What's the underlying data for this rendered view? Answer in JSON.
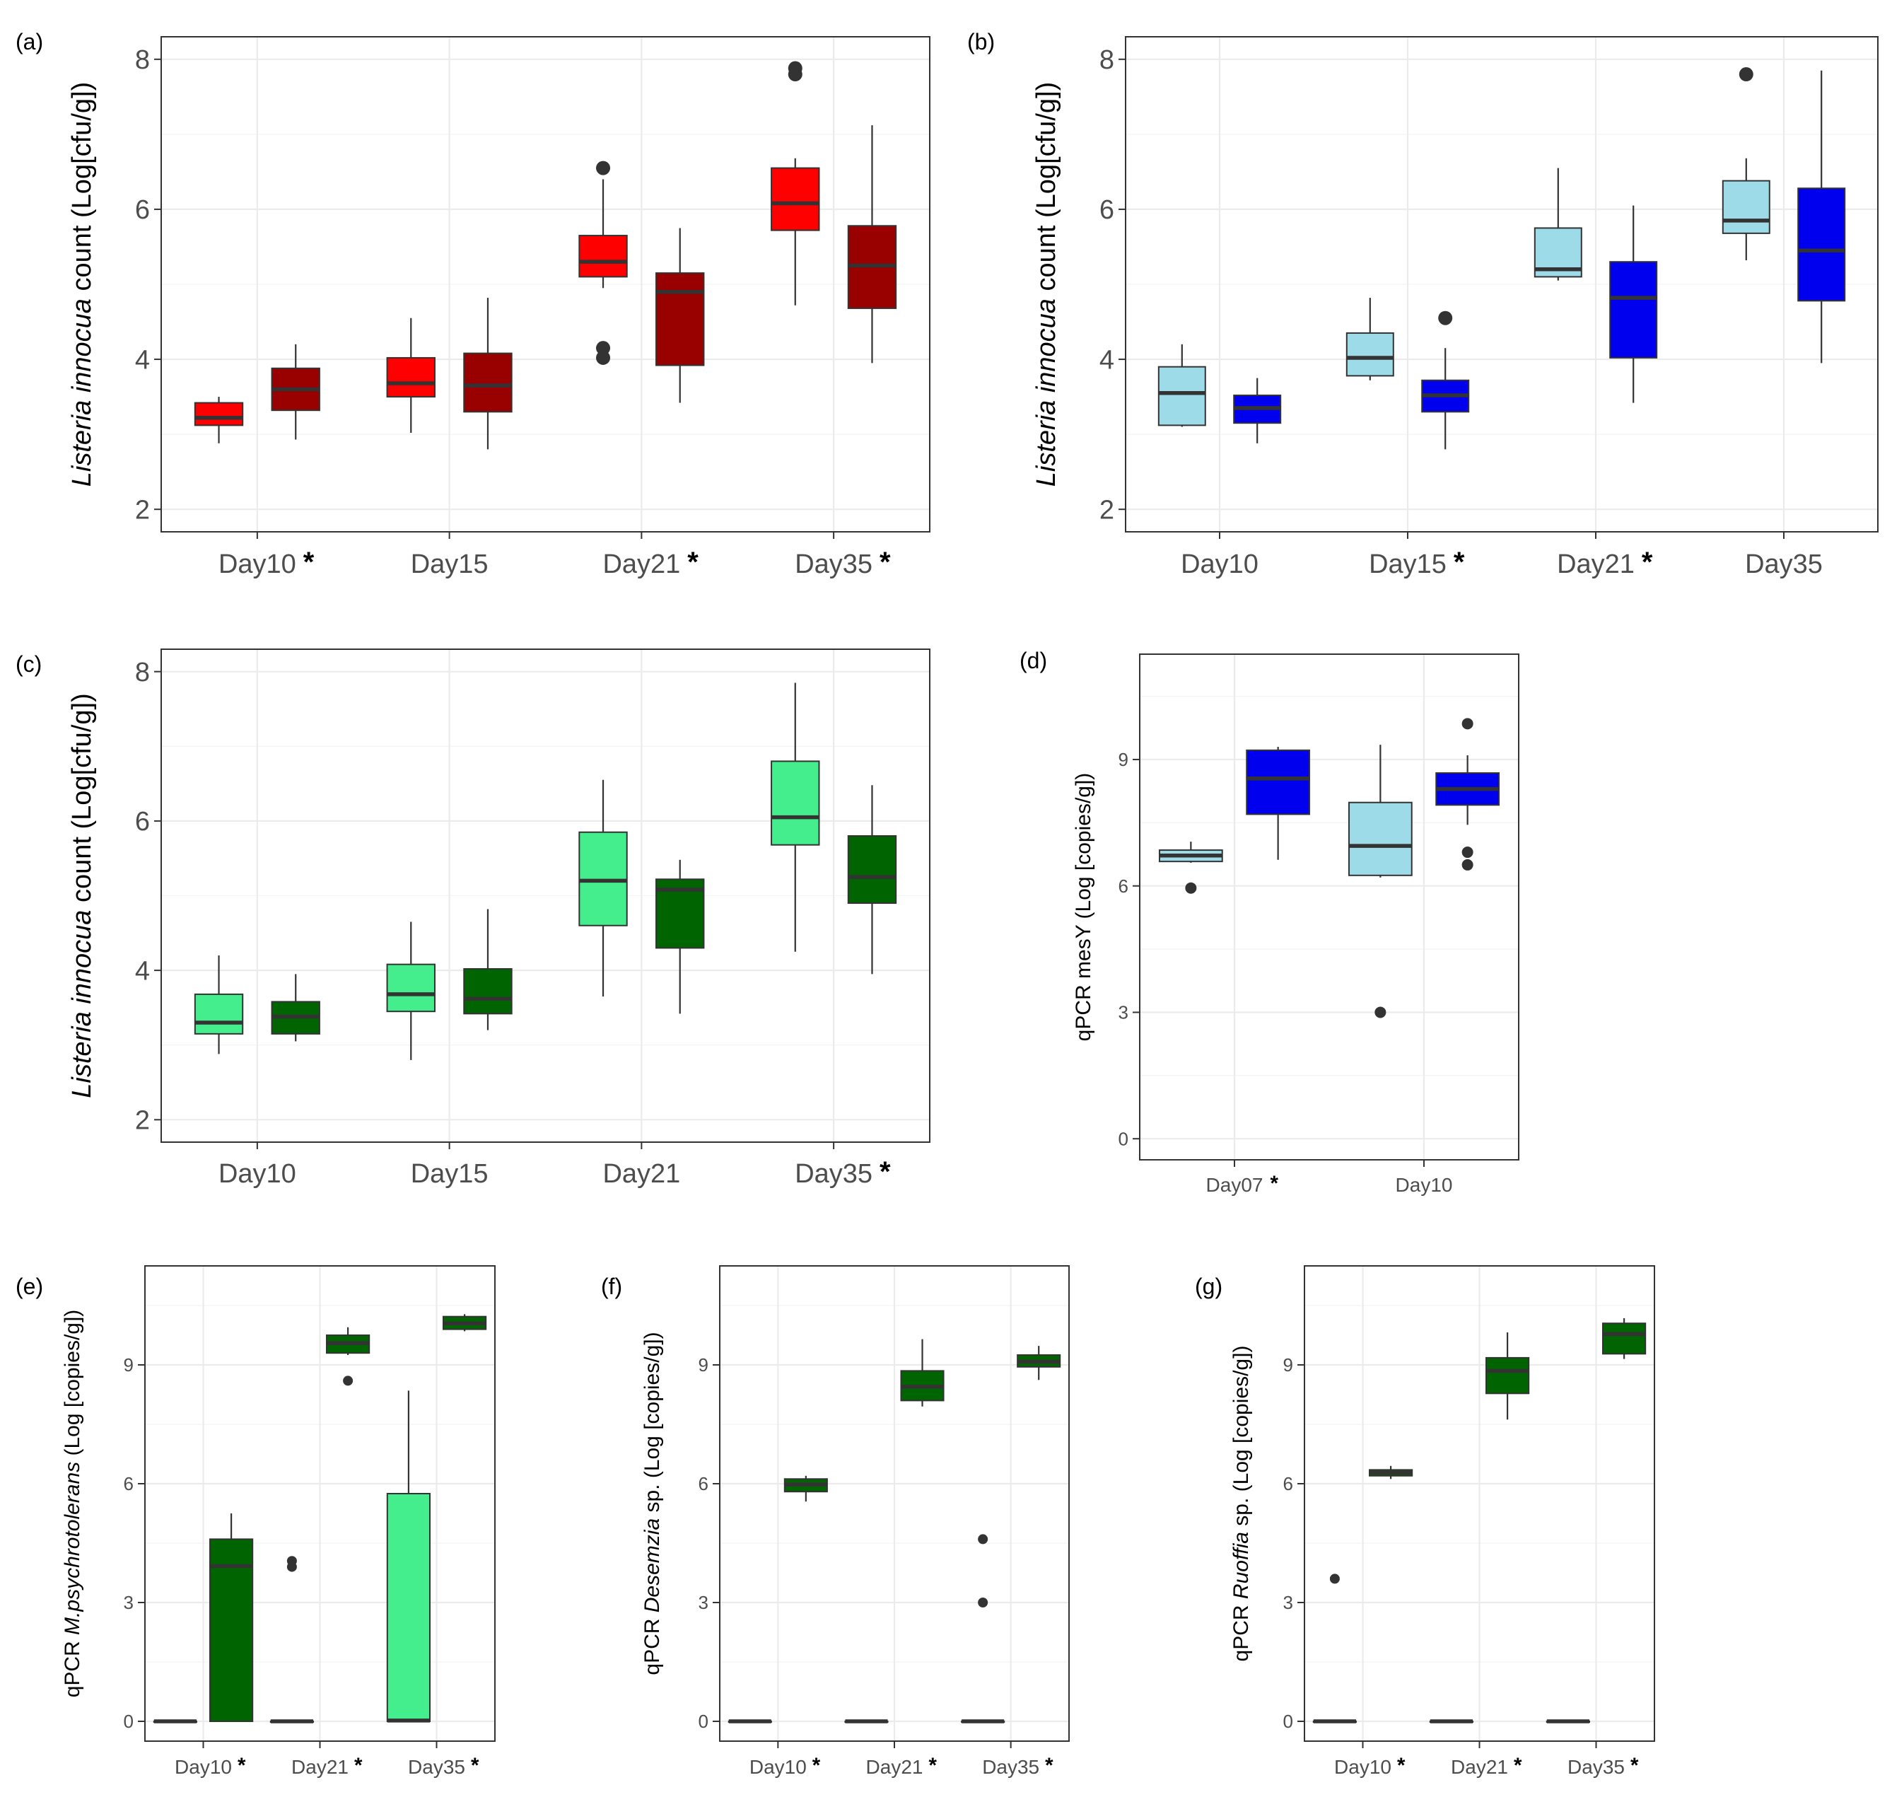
{
  "figure": {
    "panels": [
      {
        "tag": "(a)",
        "ylabel_parts": [
          {
            "text": "Listeria  innocua",
            "italic": true
          },
          {
            "text": " count (Log[cfu/g])",
            "italic": false
          }
        ],
        "asterisk": "*",
        "series_colors": [
          "#ff0000",
          "#990000"
        ]
      },
      {
        "tag": "(b)",
        "ylabel_parts": [
          {
            "text": "Listeria  innocua",
            "italic": true
          },
          {
            "text": " count (Log[cfu/g])",
            "italic": false
          }
        ],
        "asterisk": "*",
        "series_colors": [
          "#9ddbe8",
          "#0000ee"
        ]
      },
      {
        "tag": "(c)",
        "ylabel_parts": [
          {
            "text": "Listeria  innocua",
            "italic": true
          },
          {
            "text": " count (Log[cfu/g])",
            "italic": false
          }
        ],
        "asterisk": "*",
        "series_colors": [
          "#44ee8d",
          "#006400"
        ]
      },
      {
        "tag": "(d)",
        "ylabel_parts": [
          {
            "text": "qPCR mesY (Log [copies/g])",
            "italic": false
          }
        ],
        "asterisk": "*",
        "series_colors": [
          "#9ddbe8",
          "#0000ee"
        ]
      },
      {
        "tag": "(e)",
        "ylabel_parts": [
          {
            "text": "qPCR ",
            "italic": false
          },
          {
            "text": "M.psychrotolerans",
            "italic": true
          },
          {
            "text": " (Log [copies/g])",
            "italic": false
          }
        ],
        "asterisk": "*",
        "series_colors": [
          "#44ee8d",
          "#006400"
        ]
      },
      {
        "tag": "(f)",
        "ylabel_parts": [
          {
            "text": "qPCR ",
            "italic": false
          },
          {
            "text": "Desemzia",
            "italic": true
          },
          {
            "text": " sp. (Log [copies/g])",
            "italic": false
          }
        ],
        "asterisk": "*",
        "series_colors": [
          "#44ee8d",
          "#006400"
        ]
      },
      {
        "tag": "(g)",
        "ylabel_parts": [
          {
            "text": "qPCR ",
            "italic": false
          },
          {
            "text": "Ruoffia",
            "italic": true
          },
          {
            "text": " sp. (Log [copies/g])",
            "italic": false
          }
        ],
        "asterisk": "*",
        "series_colors": [
          "#44ee8d",
          "#006400"
        ]
      }
    ]
  },
  "chart_data": [
    {
      "type": "box",
      "panel": "(a)",
      "categories": [
        "Day10",
        "Day15",
        "Day21",
        "Day35"
      ],
      "significant": [
        true,
        false,
        true,
        true
      ],
      "ylim": [
        1.7,
        8.3
      ],
      "yticks": [
        2,
        4,
        6,
        8
      ],
      "grid": true,
      "boxes": [
        [
          {
            "min": 2.88,
            "q1": 3.12,
            "median": 3.22,
            "q3": 3.42,
            "max": 3.5,
            "outliers": []
          },
          {
            "min": 2.93,
            "q1": 3.32,
            "median": 3.6,
            "q3": 3.88,
            "max": 4.2,
            "outliers": []
          }
        ],
        [
          {
            "min": 3.02,
            "q1": 3.5,
            "median": 3.68,
            "q3": 4.02,
            "max": 4.55,
            "outliers": []
          },
          {
            "min": 2.8,
            "q1": 3.3,
            "median": 3.65,
            "q3": 4.08,
            "max": 4.82,
            "outliers": []
          }
        ],
        [
          {
            "min": 4.95,
            "q1": 5.1,
            "median": 5.3,
            "q3": 5.65,
            "max": 6.4,
            "outliers": [
              6.55,
              4.15,
              4.02
            ]
          },
          {
            "min": 3.42,
            "q1": 3.92,
            "median": 4.9,
            "q3": 5.15,
            "max": 5.75,
            "outliers": []
          }
        ],
        [
          {
            "min": 4.72,
            "q1": 5.72,
            "median": 6.08,
            "q3": 6.55,
            "max": 6.68,
            "outliers": [
              7.88,
              7.8
            ]
          },
          {
            "min": 3.95,
            "q1": 4.68,
            "median": 5.25,
            "q3": 5.78,
            "max": 7.12,
            "outliers": []
          }
        ]
      ]
    },
    {
      "type": "box",
      "panel": "(b)",
      "categories": [
        "Day10",
        "Day15",
        "Day21",
        "Day35"
      ],
      "significant": [
        false,
        true,
        true,
        false
      ],
      "ylim": [
        1.7,
        8.3
      ],
      "yticks": [
        2,
        4,
        6,
        8
      ],
      "grid": true,
      "boxes": [
        [
          {
            "min": 3.1,
            "q1": 3.12,
            "median": 3.55,
            "q3": 3.9,
            "max": 4.2,
            "outliers": []
          },
          {
            "min": 2.88,
            "q1": 3.15,
            "median": 3.35,
            "q3": 3.52,
            "max": 3.75,
            "outliers": []
          }
        ],
        [
          {
            "min": 3.72,
            "q1": 3.78,
            "median": 4.02,
            "q3": 4.35,
            "max": 4.82,
            "outliers": []
          },
          {
            "min": 2.8,
            "q1": 3.3,
            "median": 3.52,
            "q3": 3.72,
            "max": 4.15,
            "outliers": [
              4.55
            ]
          }
        ],
        [
          {
            "min": 5.05,
            "q1": 5.1,
            "median": 5.2,
            "q3": 5.75,
            "max": 6.55,
            "outliers": []
          },
          {
            "min": 3.42,
            "q1": 4.02,
            "median": 4.82,
            "q3": 5.3,
            "max": 6.05,
            "outliers": []
          }
        ],
        [
          {
            "min": 5.32,
            "q1": 5.68,
            "median": 5.85,
            "q3": 6.38,
            "max": 6.68,
            "outliers": [
              7.8
            ]
          },
          {
            "min": 3.95,
            "q1": 4.78,
            "median": 5.45,
            "q3": 6.28,
            "max": 7.85,
            "outliers": []
          }
        ]
      ]
    },
    {
      "type": "box",
      "panel": "(c)",
      "categories": [
        "Day10",
        "Day15",
        "Day21",
        "Day35"
      ],
      "significant": [
        false,
        false,
        false,
        true
      ],
      "ylim": [
        1.7,
        8.3
      ],
      "yticks": [
        2,
        4,
        6,
        8
      ],
      "grid": true,
      "boxes": [
        [
          {
            "min": 2.88,
            "q1": 3.15,
            "median": 3.3,
            "q3": 3.68,
            "max": 4.2,
            "outliers": []
          },
          {
            "min": 3.05,
            "q1": 3.15,
            "median": 3.38,
            "q3": 3.58,
            "max": 3.95,
            "outliers": []
          }
        ],
        [
          {
            "min": 2.8,
            "q1": 3.45,
            "median": 3.68,
            "q3": 4.08,
            "max": 4.65,
            "outliers": []
          },
          {
            "min": 3.2,
            "q1": 3.42,
            "median": 3.62,
            "q3": 4.02,
            "max": 4.82,
            "outliers": []
          }
        ],
        [
          {
            "min": 3.65,
            "q1": 4.6,
            "median": 5.2,
            "q3": 5.85,
            "max": 6.55,
            "outliers": []
          },
          {
            "min": 3.42,
            "q1": 4.3,
            "median": 5.08,
            "q3": 5.22,
            "max": 5.48,
            "outliers": []
          }
        ],
        [
          {
            "min": 4.25,
            "q1": 5.68,
            "median": 6.05,
            "q3": 6.8,
            "max": 7.85,
            "outliers": []
          },
          {
            "min": 3.95,
            "q1": 4.9,
            "median": 5.25,
            "q3": 5.8,
            "max": 6.48,
            "outliers": []
          }
        ]
      ]
    },
    {
      "type": "box",
      "panel": "(d)",
      "categories": [
        "Day07",
        "Day10"
      ],
      "significant": [
        true,
        false
      ],
      "ylim": [
        -0.5,
        11.5
      ],
      "yticks": [
        0,
        3,
        6,
        9
      ],
      "grid": true,
      "boxes": [
        [
          {
            "min": 6.55,
            "q1": 6.58,
            "median": 6.72,
            "q3": 6.85,
            "max": 7.05,
            "outliers": [
              5.95
            ]
          },
          {
            "min": 6.62,
            "q1": 7.7,
            "median": 8.55,
            "q3": 9.22,
            "max": 9.3,
            "outliers": []
          }
        ],
        [
          {
            "min": 6.2,
            "q1": 6.25,
            "median": 6.95,
            "q3": 7.98,
            "max": 9.35,
            "outliers": [
              3.0
            ]
          },
          {
            "min": 7.45,
            "q1": 7.92,
            "median": 8.3,
            "q3": 8.68,
            "max": 9.1,
            "outliers": [
              9.85,
              6.8,
              6.5
            ]
          }
        ]
      ]
    },
    {
      "type": "box",
      "panel": "(e)",
      "categories": [
        "Day10",
        "Day21",
        "Day35"
      ],
      "significant": [
        true,
        true,
        true
      ],
      "ylim": [
        -0.5,
        11.5
      ],
      "yticks": [
        0,
        3,
        6,
        9
      ],
      "grid": true,
      "boxes": [
        [
          {
            "min": 0,
            "q1": 0,
            "median": 0,
            "q3": 0,
            "max": 0,
            "outliers": []
          },
          {
            "min": 0,
            "q1": 0,
            "median": 3.92,
            "q3": 4.6,
            "max": 5.25,
            "outliers": []
          }
        ],
        [
          {
            "min": 0,
            "q1": 0,
            "median": 0,
            "q3": 0,
            "max": 0,
            "outliers": [
              4.05,
              3.9
            ]
          },
          {
            "min": 9.25,
            "q1": 9.3,
            "median": 9.55,
            "q3": 9.75,
            "max": 9.95,
            "outliers": [
              8.6
            ]
          }
        ],
        [
          {
            "min": 0,
            "q1": 0,
            "median": 0.02,
            "q3": 5.75,
            "max": 8.35,
            "outliers": []
          },
          {
            "min": 9.85,
            "q1": 9.9,
            "median": 10.05,
            "q3": 10.22,
            "max": 10.28,
            "outliers": []
          }
        ]
      ]
    },
    {
      "type": "box",
      "panel": "(f)",
      "categories": [
        "Day10",
        "Day21",
        "Day35"
      ],
      "significant": [
        true,
        true,
        true
      ],
      "ylim": [
        -0.5,
        11.5
      ],
      "yticks": [
        0,
        3,
        6,
        9
      ],
      "grid": true,
      "boxes": [
        [
          {
            "min": 0,
            "q1": 0,
            "median": 0,
            "q3": 0,
            "max": 0,
            "outliers": []
          },
          {
            "min": 5.55,
            "q1": 5.8,
            "median": 5.98,
            "q3": 6.12,
            "max": 6.2,
            "outliers": []
          }
        ],
        [
          {
            "min": 0,
            "q1": 0,
            "median": 0,
            "q3": 0,
            "max": 0,
            "outliers": []
          },
          {
            "min": 7.95,
            "q1": 8.1,
            "median": 8.45,
            "q3": 8.85,
            "max": 9.65,
            "outliers": []
          }
        ],
        [
          {
            "min": 0,
            "q1": 0,
            "median": 0,
            "q3": 0,
            "max": 0,
            "outliers": [
              4.6,
              3.0
            ]
          },
          {
            "min": 8.62,
            "q1": 8.95,
            "median": 9.08,
            "q3": 9.25,
            "max": 9.48,
            "outliers": []
          }
        ]
      ]
    },
    {
      "type": "box",
      "panel": "(g)",
      "categories": [
        "Day10",
        "Day21",
        "Day35"
      ],
      "significant": [
        true,
        true,
        true
      ],
      "ylim": [
        -0.5,
        11.5
      ],
      "yticks": [
        0,
        3,
        6,
        9
      ],
      "grid": true,
      "boxes": [
        [
          {
            "min": 0,
            "q1": 0,
            "median": 0,
            "q3": 0,
            "max": 0,
            "outliers": [
              3.6
            ]
          },
          {
            "min": 6.12,
            "q1": 6.2,
            "median": 6.28,
            "q3": 6.35,
            "max": 6.45,
            "outliers": []
          }
        ],
        [
          {
            "min": 0,
            "q1": 0,
            "median": 0,
            "q3": 0,
            "max": 0,
            "outliers": []
          },
          {
            "min": 7.62,
            "q1": 8.28,
            "median": 8.85,
            "q3": 9.18,
            "max": 9.82,
            "outliers": []
          }
        ],
        [
          {
            "min": 0,
            "q1": 0,
            "median": 0,
            "q3": 0,
            "max": 0,
            "outliers": []
          },
          {
            "min": 9.15,
            "q1": 9.28,
            "median": 9.78,
            "q3": 10.05,
            "max": 10.18,
            "outliers": []
          }
        ]
      ]
    }
  ]
}
